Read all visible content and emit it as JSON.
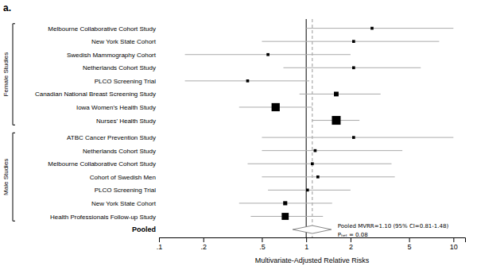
{
  "chart_data": {
    "type": "forest",
    "title": "a.",
    "x_label": "Multivariate-Adjusted Relative Risks",
    "log": "x",
    "grid": false,
    "xlim": [
      0.1,
      12.0
    ],
    "xticks": [
      {
        "value": 0.1,
        "label": ".1"
      },
      {
        "value": 0.2,
        "label": ".2"
      },
      {
        "value": 0.5,
        "label": ".5"
      },
      1,
      2,
      5,
      10
    ],
    "groups": [
      {
        "name": "Female Studies",
        "categories": [
          "Melbourne Collaborative Cohort Study",
          "New York State Cohort",
          "Swedish Mammography Cohort",
          "Netherlands Cohort Study",
          "PLCO Screening Trial",
          "Canadian National Breast Screening Study",
          "Iowa Women's Health Study",
          "Nurses' Health Study"
        ],
        "values": [
          2.8,
          2.1,
          0.55,
          2.1,
          0.4,
          1.6,
          0.62,
          1.6
        ],
        "ci_low": [
          1.0,
          0.5,
          0.15,
          0.7,
          0.15,
          0.9,
          0.35,
          1.1
        ],
        "ci_high": [
          10.0,
          8.0,
          2.0,
          6.0,
          1.05,
          3.2,
          1.1,
          2.3
        ],
        "sizes": [
          2.5,
          2.5,
          2.5,
          2.5,
          2.5,
          4.0,
          7.0,
          7.5
        ]
      },
      {
        "name": "Male Studies",
        "categories": [
          "ATBC Cancer Prevention Study",
          "Netherlands Cohort Study",
          "Melbourne Collaborative Cohort Study",
          "Cohort of Swedish Men",
          "PLCO Screening Trial",
          "New York State Cohort",
          "Health Professionals Follow-up Study"
        ],
        "values": [
          2.1,
          1.15,
          1.1,
          1.2,
          1.02,
          0.72,
          0.72
        ],
        "ci_low": [
          0.5,
          0.5,
          0.4,
          0.5,
          0.55,
          0.35,
          0.42
        ],
        "ci_high": [
          10.0,
          4.5,
          3.8,
          4.0,
          2.0,
          1.5,
          1.3
        ],
        "sizes": [
          2.5,
          2.5,
          2.5,
          2.5,
          2.5,
          3.5,
          6.0
        ]
      }
    ],
    "pooled": {
      "name": "Pooled",
      "value": 1.1,
      "ci_low": 0.81,
      "ci_high": 1.48
    },
    "reference_lines": [
      {
        "value": 1.0,
        "line_style": "solid"
      },
      {
        "value": 1.1,
        "line_style": "dashed"
      }
    ],
    "annotations": [
      "Pooled MVRR=1.10 (95% CI=0.81-1.48)",
      "Pₕₑₜ = 0.08"
    ]
  }
}
